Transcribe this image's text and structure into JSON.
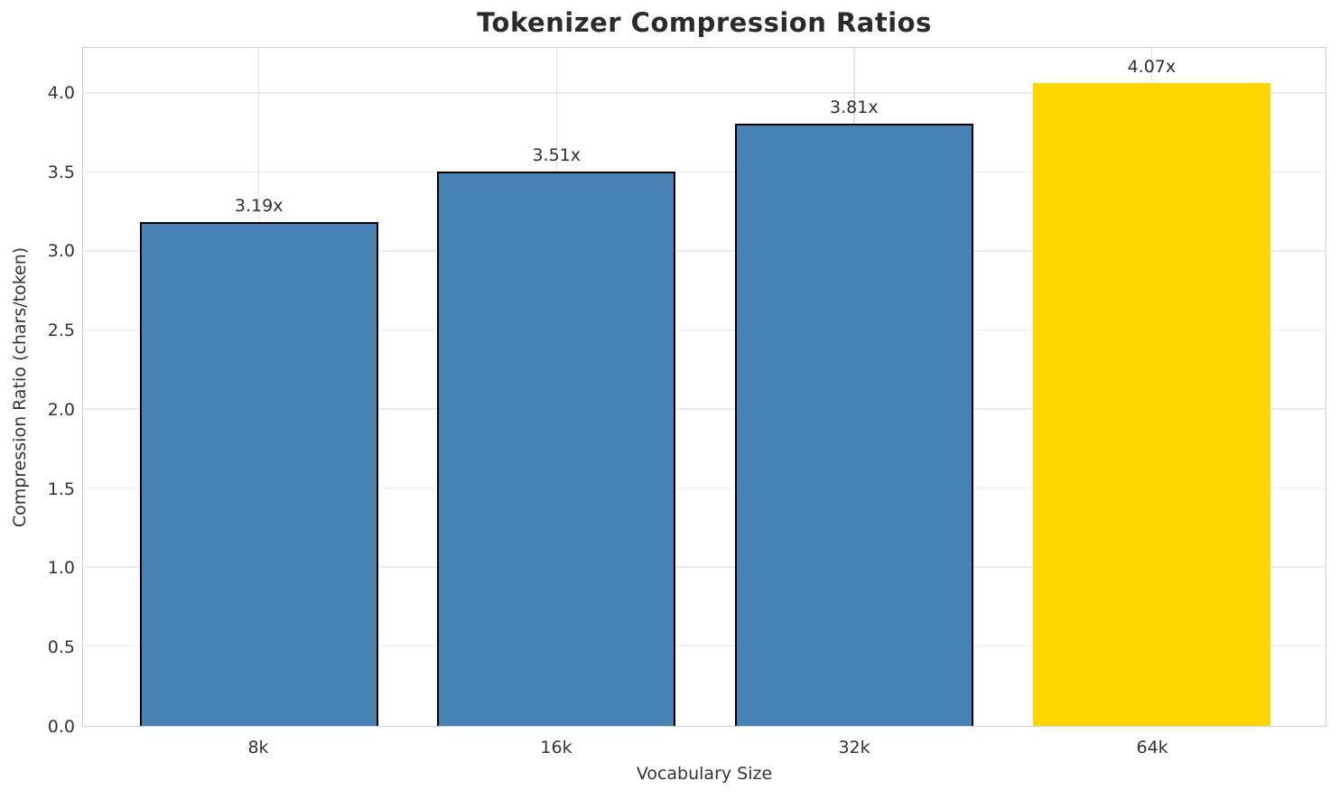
{
  "title": "Tokenizer Compression Ratios",
  "colors": {
    "bar_default": "#4682B4",
    "bar_highlight": "#FFD700",
    "bar_edge": "#000000",
    "grid": "#e8e8e8",
    "spine": "#d0d0d0",
    "text": "#333333",
    "title_text": "#2b2b2b"
  },
  "chart_data": {
    "type": "bar",
    "title": "Tokenizer Compression Ratios",
    "xlabel": "Vocabulary Size",
    "ylabel": "Compression Ratio (chars/token)",
    "categories": [
      "8k",
      "16k",
      "32k",
      "64k"
    ],
    "values": [
      3.19,
      3.51,
      3.81,
      4.07
    ],
    "bar_labels": [
      "3.19x",
      "3.51x",
      "3.81x",
      "4.07x"
    ],
    "bar_colors": [
      "#4682B4",
      "#4682B4",
      "#4682B4",
      "#FFD700"
    ],
    "bar_edge_colors": [
      "#000000",
      "#000000",
      "#000000",
      "none"
    ],
    "ylim": [
      0,
      4.29
    ],
    "yticks": [
      0.0,
      0.5,
      1.0,
      1.5,
      2.0,
      2.5,
      3.0,
      3.5,
      4.0
    ],
    "ytick_labels": [
      "0.0",
      "0.5",
      "1.0",
      "1.5",
      "2.0",
      "2.5",
      "3.0",
      "3.5",
      "4.0"
    ],
    "grid": true,
    "legend": "none",
    "highlighted_category": "64k"
  }
}
